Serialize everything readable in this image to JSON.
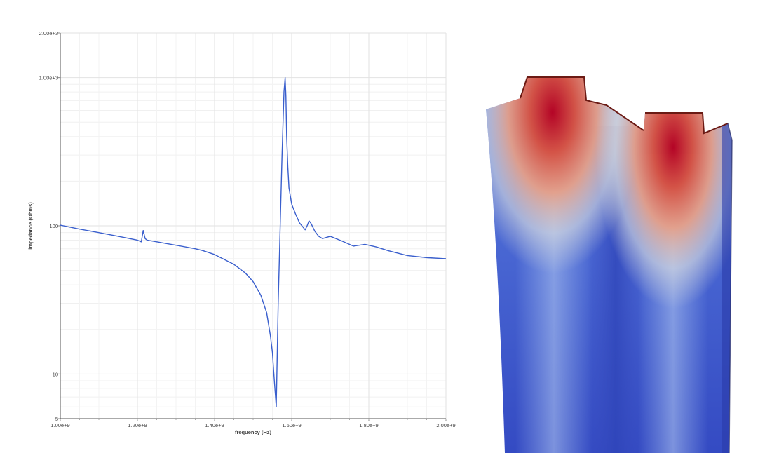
{
  "chart_data": {
    "type": "line",
    "title": "",
    "xlabel": "frequency (Hz)",
    "ylabel": "impedance (Ohms)",
    "x_scale": "linear",
    "y_scale": "log",
    "xlim": [
      1000000000.0,
      2000000000.0
    ],
    "ylim": [
      5,
      2000
    ],
    "grid": true,
    "legend": "none",
    "x_ticks": [
      {
        "value": 1000000000.0,
        "label": "1.00e+9"
      },
      {
        "value": 1200000000.0,
        "label": "1.20e+9"
      },
      {
        "value": 1400000000.0,
        "label": "1.40e+9"
      },
      {
        "value": 1600000000.0,
        "label": "1.60e+9"
      },
      {
        "value": 1800000000.0,
        "label": "1.80e+9"
      },
      {
        "value": 2000000000.0,
        "label": "2.00e+9"
      }
    ],
    "y_ticks": [
      {
        "value": 5,
        "label": "5"
      },
      {
        "value": 10,
        "label": "10"
      },
      {
        "value": 100,
        "label": "100"
      },
      {
        "value": 1000,
        "label": "1.00e+3"
      },
      {
        "value": 2000,
        "label": "2.00e+3"
      }
    ],
    "series": [
      {
        "color": "#3a5fcd",
        "x": [
          1000000000.0,
          1050000000.0,
          1100000000.0,
          1150000000.0,
          1200000000.0,
          1210000000.0,
          1215000000.0,
          1220000000.0,
          1225000000.0,
          1250000000.0,
          1300000000.0,
          1350000000.0,
          1370000000.0,
          1400000000.0,
          1450000000.0,
          1480000000.0,
          1500000000.0,
          1520000000.0,
          1535000000.0,
          1545000000.0,
          1550000000.0,
          1555000000.0,
          1560000000.0,
          1565000000.0,
          1570000000.0,
          1575000000.0,
          1580000000.0,
          1583000000.0,
          1585000000.0,
          1587000000.0,
          1590000000.0,
          1593000000.0,
          1600000000.0,
          1610000000.0,
          1620000000.0,
          1635000000.0,
          1640000000.0,
          1645000000.0,
          1650000000.0,
          1660000000.0,
          1670000000.0,
          1680000000.0,
          1700000000.0,
          1730000000.0,
          1760000000.0,
          1790000000.0,
          1820000000.0,
          1850000000.0,
          1900000000.0,
          1950000000.0,
          2000000000.0
        ],
        "y": [
          101,
          95,
          90,
          85,
          80,
          78,
          93,
          82,
          80,
          78,
          74,
          70,
          68,
          64,
          55,
          48,
          42,
          34,
          26,
          18,
          14,
          9,
          6,
          30,
          95,
          300,
          800,
          1000,
          750,
          400,
          250,
          180,
          140,
          120,
          105,
          94,
          100,
          108,
          104,
          92,
          85,
          82,
          85,
          79,
          73,
          75,
          72,
          68,
          63,
          61,
          60
        ]
      }
    ]
  },
  "render_colors": {
    "heat_low": "#3a4cc0",
    "heat_mid": "#dcdddd",
    "heat_high": "#b40426"
  }
}
